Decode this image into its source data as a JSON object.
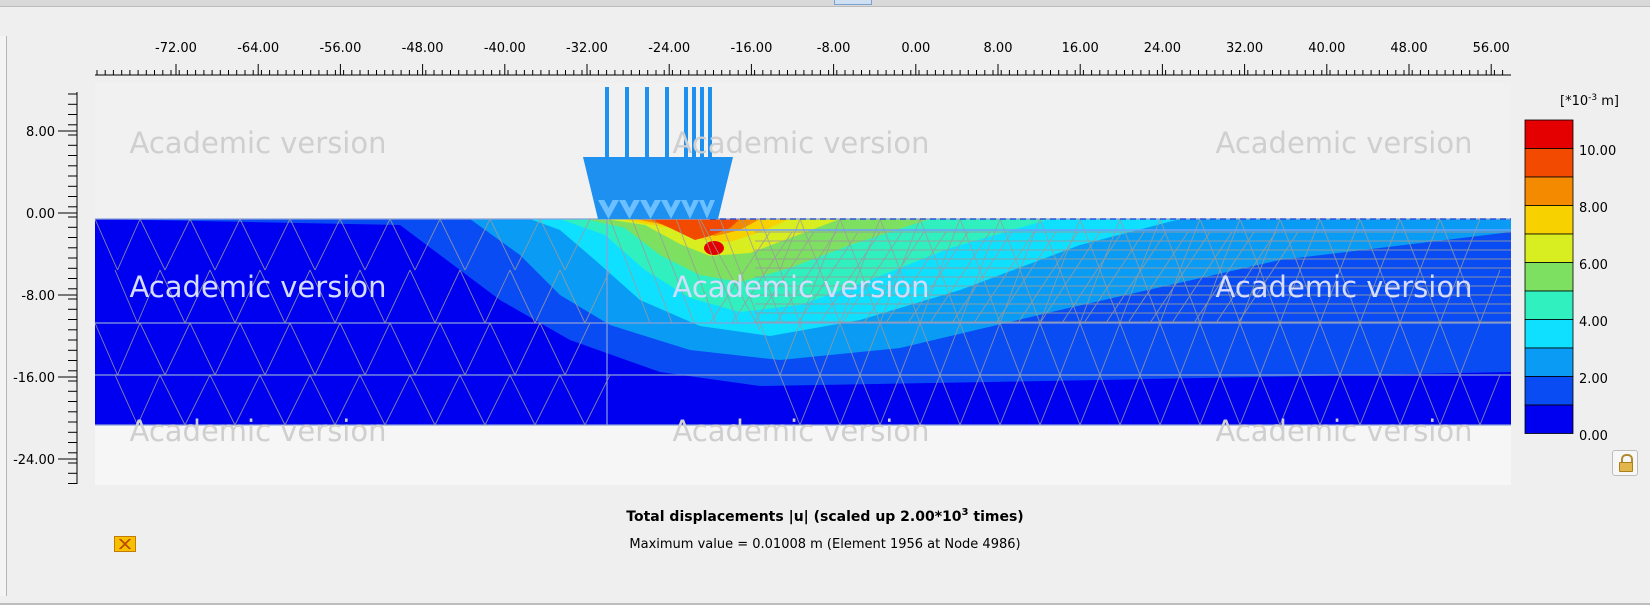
{
  "x_axis": {
    "labels": [
      "-72.00",
      "-64.00",
      "-56.00",
      "-48.00",
      "-40.00",
      "-32.00",
      "-24.00",
      "-16.00",
      "-8.00",
      "0.00",
      "8.00",
      "16.00",
      "24.00",
      "32.00",
      "40.00",
      "48.00",
      "56.00"
    ]
  },
  "y_axis": {
    "labels": [
      "8.00",
      "0.00",
      "-8.00",
      "-16.00",
      "-24.00"
    ]
  },
  "watermark": "Academic version",
  "legend": {
    "unit_prefix": "[*10",
    "unit_exp": "-3",
    "unit_suffix": " m]",
    "labels": [
      "10.00",
      "8.00",
      "6.00",
      "4.00",
      "2.00",
      "0.00"
    ],
    "colors": [
      "#e40000",
      "#f24a00",
      "#f48a00",
      "#f8d200",
      "#d8ee20",
      "#7ee060",
      "#30f0c0",
      "#10e0ff",
      "#0a9cf4",
      "#0a4cf4",
      "#0000f0"
    ]
  },
  "caption": {
    "title_main": "Total displacements |u| (scaled up 2.00*10",
    "title_exp": "3",
    "title_tail": " times)",
    "max_value": "Maximum value = 0.01008 m (Element 1956 at Node 4986)"
  },
  "icons": {
    "result_icon": "displacement-result-icon",
    "lock": "lock-icon"
  }
}
